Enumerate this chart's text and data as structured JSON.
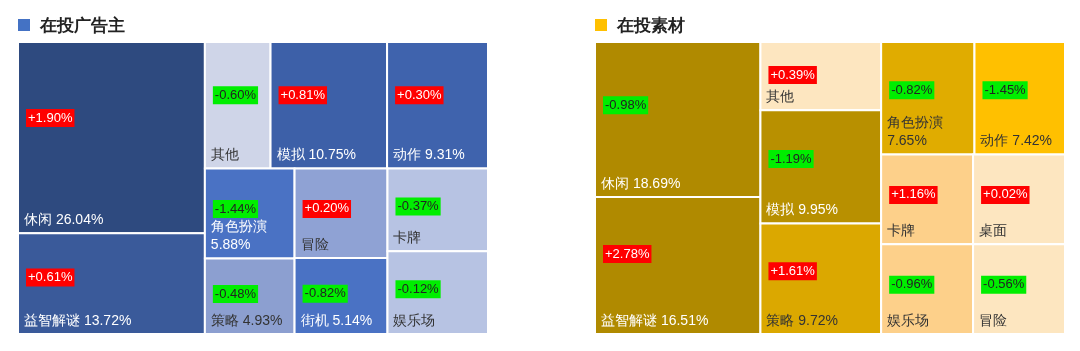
{
  "chart_data": [
    {
      "type": "other",
      "title": "在投广告主",
      "categories": [
        "休闲",
        "益智解谜",
        "其他",
        "模拟",
        "动作",
        "角色扮演",
        "策略",
        "冒险",
        "街机",
        "卡牌",
        "娱乐场"
      ],
      "values": [
        26.04,
        13.72,
        null,
        10.75,
        9.31,
        5.88,
        4.93,
        null,
        5.14,
        null,
        null
      ],
      "value_labels": [
        "26.04%",
        "13.72%",
        null,
        "10.75%",
        "9.31%",
        "5.88%",
        "4.93%",
        null,
        "5.14%",
        null,
        null
      ],
      "colors": [
        "#2e4a7f",
        "#3a5a9a",
        "#cfd5e8",
        "#3d60a8",
        "#3f63ad",
        "#4a72c4",
        "#8c9fd0",
        "#8fa2d4",
        "#4a72c4",
        "#b7c3e3",
        "#b7c3e3"
      ],
      "annotations": [
        "+1.90%",
        "+0.61%",
        "-0.60%",
        "+0.81%",
        "+0.30%",
        "-1.44%",
        "-0.48%",
        "+0.20%",
        "-0.82%",
        "-0.37%",
        "-0.12%"
      ]
    },
    {
      "type": "other",
      "title": "在投素材",
      "categories": [
        "休闲",
        "益智解谜",
        "其他",
        "模拟",
        "策略",
        "角色扮演",
        "动作",
        "卡牌",
        "娱乐场",
        "桌面",
        "冒险"
      ],
      "values": [
        18.69,
        16.51,
        null,
        9.95,
        9.72,
        7.65,
        7.42,
        null,
        null,
        null,
        null
      ],
      "value_labels": [
        "18.69%",
        "16.51%",
        null,
        "9.95%",
        "9.72%",
        "7.65%",
        "7.42%",
        null,
        null,
        null,
        null
      ],
      "colors": [
        "#b08a00",
        "#b08a00",
        "#fde6c0",
        "#b89000",
        "#dba800",
        "#e0ac00",
        "#ffc000",
        "#fdd08a",
        "#fdd08a",
        "#fde6c0",
        "#fde6c0"
      ],
      "annotations": [
        "-0.98%",
        "+2.78%",
        "+0.39%",
        "-1.19%",
        "+1.61%",
        "-0.82%",
        "-1.45%",
        "+1.16%",
        "-0.96%",
        "+0.02%",
        "-0.56%"
      ]
    }
  ]
}
